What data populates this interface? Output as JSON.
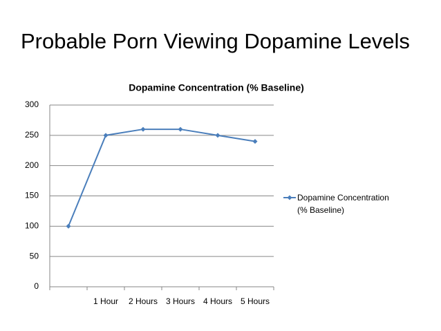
{
  "slide_title": "Probable Porn Viewing Dopamine Levels",
  "chart_data": {
    "type": "line",
    "title": "Dopamine Concentration (% Baseline)",
    "categories": [
      null,
      "1 Hour",
      "2 Hours",
      "3 Hours",
      "4 Hours",
      "5 Hours"
    ],
    "series": [
      {
        "name": "Dopamine Concentration (% Baseline)",
        "color": "#4a7ebb",
        "values": [
          100,
          250,
          260,
          260,
          250,
          240
        ]
      }
    ],
    "ylim": [
      0,
      300
    ],
    "yticks": [
      0,
      50,
      100,
      150,
      200,
      250,
      300
    ],
    "grid": true,
    "legend": "right"
  }
}
